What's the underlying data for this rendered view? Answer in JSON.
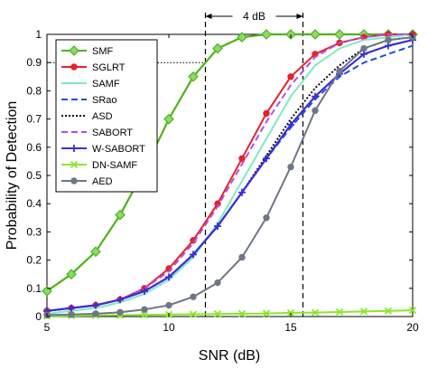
{
  "chart_data": {
    "type": "line",
    "xlabel": "SNR (dB)",
    "ylabel": "Probability of Detection",
    "xlim": [
      5,
      20
    ],
    "ylim": [
      0,
      1
    ],
    "x_ticks": [
      "5",
      "10",
      "15",
      "20"
    ],
    "y_ticks": [
      "0",
      "0.1",
      "0.2",
      "0.3",
      "0.4",
      "0.5",
      "0.6",
      "0.7",
      "0.8",
      "0.9",
      "1"
    ],
    "grid": false,
    "legend_position": "top-left",
    "annotations": {
      "gap_label": "4 dB",
      "gap_x": [
        11.5,
        15.5
      ],
      "reference_y": 0.9
    },
    "x": [
      5,
      6,
      7,
      8,
      9,
      10,
      11,
      12,
      13,
      14,
      15,
      16,
      17,
      18,
      19,
      20
    ],
    "series": [
      {
        "name": "SMF",
        "color": "#4cb31a",
        "marker": "diamond",
        "dash": "",
        "values": [
          0.09,
          0.15,
          0.23,
          0.36,
          0.52,
          0.7,
          0.85,
          0.95,
          0.99,
          1.0,
          1.0,
          1.0,
          1.0,
          1.0,
          1.0,
          1.0
        ]
      },
      {
        "name": "SGLRT",
        "color": "#e8202a",
        "marker": "dot",
        "dash": "",
        "values": [
          0.02,
          0.03,
          0.04,
          0.06,
          0.1,
          0.17,
          0.27,
          0.4,
          0.56,
          0.72,
          0.85,
          0.93,
          0.97,
          0.99,
          1.0,
          1.0
        ]
      },
      {
        "name": "SAMF",
        "color": "#7fe8c8",
        "marker": "",
        "dash": "",
        "values": [
          0.01,
          0.02,
          0.03,
          0.05,
          0.08,
          0.13,
          0.21,
          0.33,
          0.48,
          0.63,
          0.78,
          0.89,
          0.95,
          0.98,
          0.99,
          1.0
        ]
      },
      {
        "name": "SRao",
        "color": "#1a4fd6",
        "marker": "",
        "dash": "7,4",
        "values": [
          0.02,
          0.03,
          0.04,
          0.06,
          0.09,
          0.14,
          0.22,
          0.32,
          0.44,
          0.56,
          0.67,
          0.77,
          0.85,
          0.9,
          0.93,
          0.96
        ]
      },
      {
        "name": "ASD",
        "color": "#111111",
        "marker": "",
        "dash": "2,2",
        "values": [
          0.02,
          0.03,
          0.04,
          0.06,
          0.09,
          0.14,
          0.22,
          0.32,
          0.44,
          0.57,
          0.7,
          0.81,
          0.89,
          0.95,
          0.98,
          0.99
        ]
      },
      {
        "name": "SABORT",
        "color": "#b04ee8",
        "marker": "",
        "dash": "7,4",
        "values": [
          0.02,
          0.03,
          0.04,
          0.06,
          0.1,
          0.16,
          0.26,
          0.39,
          0.54,
          0.69,
          0.82,
          0.92,
          0.97,
          0.99,
          1.0,
          1.0
        ]
      },
      {
        "name": "W-SABORT",
        "color": "#3a2fd6",
        "marker": "plus",
        "dash": "",
        "values": [
          0.02,
          0.03,
          0.04,
          0.06,
          0.09,
          0.14,
          0.22,
          0.32,
          0.44,
          0.56,
          0.68,
          0.78,
          0.86,
          0.93,
          0.96,
          0.98
        ]
      },
      {
        "name": "DN-SAMF",
        "color": "#8ae82a",
        "marker": "x",
        "dash": "",
        "values": [
          0.002,
          0.003,
          0.004,
          0.005,
          0.006,
          0.007,
          0.008,
          0.009,
          0.01,
          0.011,
          0.013,
          0.014,
          0.016,
          0.018,
          0.02,
          0.022
        ]
      },
      {
        "name": "AED",
        "color": "#6e7687",
        "marker": "dot",
        "dash": "",
        "values": [
          0.005,
          0.007,
          0.01,
          0.015,
          0.025,
          0.04,
          0.07,
          0.12,
          0.21,
          0.35,
          0.53,
          0.73,
          0.87,
          0.95,
          0.98,
          0.99
        ]
      }
    ]
  }
}
